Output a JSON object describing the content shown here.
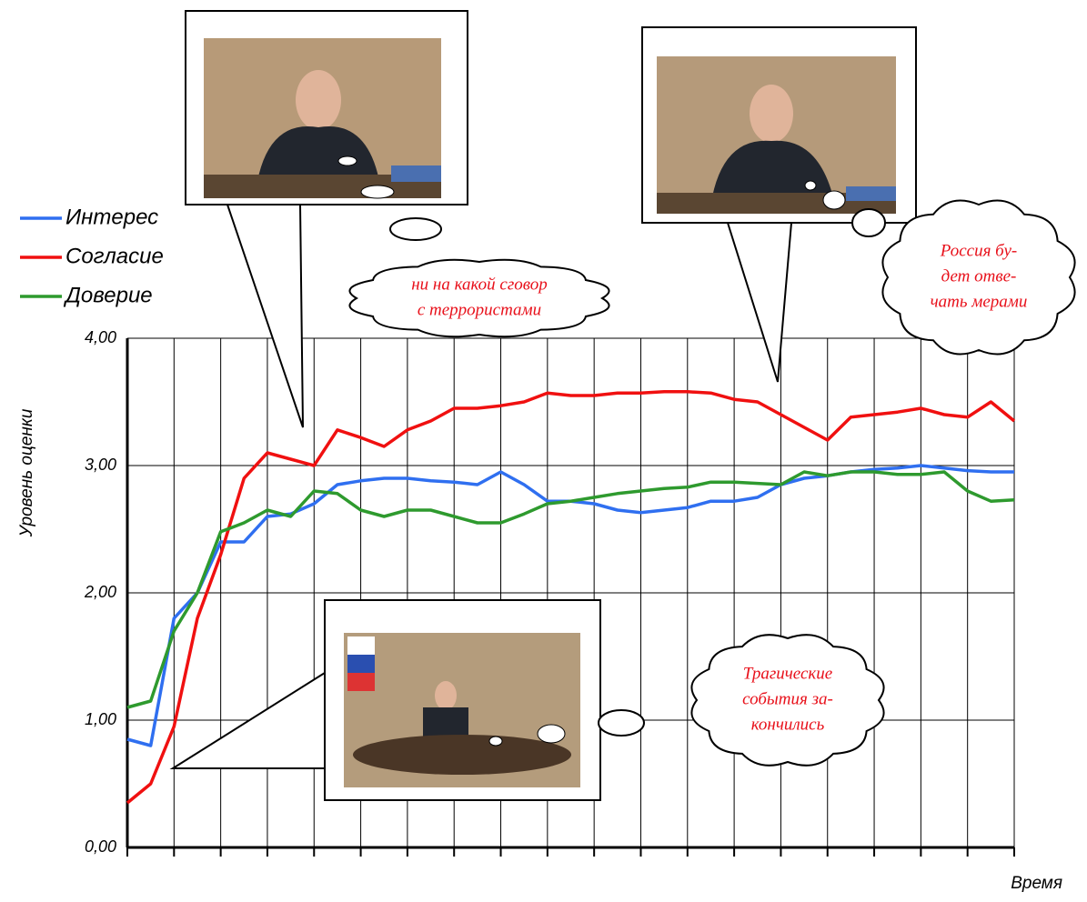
{
  "chart_data": {
    "type": "line",
    "y_label": "Уровень оценки",
    "x_label": "Время",
    "x": [
      0,
      0.5,
      1,
      1.5,
      2,
      2.5,
      3,
      3.5,
      4,
      4.5,
      5,
      5.5,
      6,
      6.5,
      7,
      7.5,
      8,
      8.5,
      9,
      9.5,
      10,
      10.5,
      11,
      11.5,
      12,
      12.5,
      13,
      13.5,
      14,
      14.5,
      15,
      15.5,
      16,
      16.5,
      17,
      17.5,
      18,
      18.5,
      19
    ],
    "series": [
      {
        "name": "Интерес",
        "color": "#2f6ff0",
        "values": [
          0.85,
          0.8,
          1.8,
          2.0,
          2.4,
          2.4,
          2.6,
          2.62,
          2.7,
          2.85,
          2.88,
          2.9,
          2.9,
          2.88,
          2.87,
          2.85,
          2.95,
          2.85,
          2.72,
          2.72,
          2.7,
          2.65,
          2.63,
          2.65,
          2.67,
          2.72,
          2.72,
          2.75,
          2.85,
          2.9,
          2.92,
          2.95,
          2.97,
          2.98,
          3.0,
          2.98,
          2.96,
          2.95,
          2.95
        ]
      },
      {
        "name": "Согласие",
        "color": "#f01010",
        "values": [
          0.35,
          0.5,
          0.95,
          1.8,
          2.3,
          2.9,
          3.1,
          3.05,
          3.0,
          3.28,
          3.22,
          3.15,
          3.28,
          3.35,
          3.45,
          3.45,
          3.47,
          3.5,
          3.57,
          3.55,
          3.55,
          3.57,
          3.57,
          3.58,
          3.58,
          3.57,
          3.52,
          3.5,
          3.4,
          3.3,
          3.2,
          3.38,
          3.4,
          3.42,
          3.45,
          3.4,
          3.38,
          3.5,
          3.35
        ]
      },
      {
        "name": "Доверие",
        "color": "#2e9a2e",
        "values": [
          1.1,
          1.15,
          1.7,
          2.0,
          2.48,
          2.55,
          2.65,
          2.6,
          2.8,
          2.78,
          2.65,
          2.6,
          2.65,
          2.65,
          2.6,
          2.55,
          2.55,
          2.62,
          2.7,
          2.72,
          2.75,
          2.78,
          2.8,
          2.82,
          2.83,
          2.87,
          2.87,
          2.86,
          2.85,
          2.95,
          2.92,
          2.95,
          2.95,
          2.93,
          2.93,
          2.95,
          2.8,
          2.72,
          2.73
        ]
      }
    ],
    "xlim": [
      0,
      19
    ],
    "xticks": [
      0,
      1,
      2,
      3,
      4,
      5,
      6,
      7,
      8,
      9,
      10,
      11,
      12,
      13,
      14,
      15,
      16,
      17,
      18,
      19
    ],
    "ylim": [
      0,
      4
    ],
    "yticks": [
      {
        "value": 0,
        "label": "0,00"
      },
      {
        "value": 1,
        "label": "1,00"
      },
      {
        "value": 2,
        "label": "2,00"
      },
      {
        "value": 3,
        "label": "3,00"
      },
      {
        "value": 4,
        "label": "4,00"
      }
    ],
    "grid": true,
    "legend": "top-left",
    "annotations": [
      {
        "lines": [
          "ни на какой сговор",
          "с террористами"
        ]
      },
      {
        "lines": [
          "Россия бу-",
          "дет отве-",
          "чать мерами"
        ]
      },
      {
        "lines": [
          "Трагические",
          "события за-",
          "кончились"
        ]
      }
    ]
  }
}
